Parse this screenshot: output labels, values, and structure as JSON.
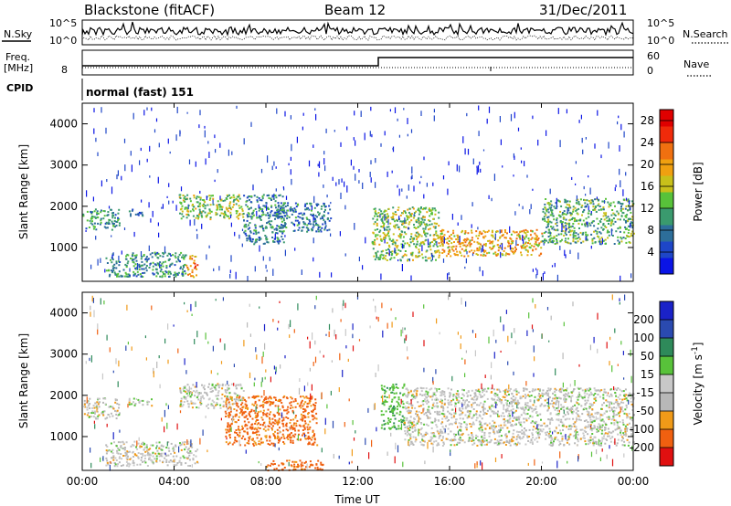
{
  "header": {
    "station": "Blackstone (fitACF)",
    "beam": "Beam 12",
    "date": "31/Dec/2011"
  },
  "noise_panel": {
    "left_label": "N.Sky",
    "left_ticks": [
      "10^5",
      "10^0"
    ],
    "right_ticks": [
      "10^5",
      "10^0"
    ],
    "right_label": "N.Search"
  },
  "freq_panel": {
    "left_label_1": "Freq.",
    "left_label_2": "[MHz]",
    "left_tick": "8",
    "right_ticks": [
      "60",
      "0"
    ],
    "right_label": "Nave"
  },
  "cpid_panel": {
    "label": "CPID",
    "text": "normal (fast) 151"
  },
  "colors": {
    "power_scale": [
      "#0a14e6",
      "#1e46c8",
      "#2d6e9a",
      "#3a9a6e",
      "#58c23a",
      "#c8c01a",
      "#f0a010",
      "#f07010",
      "#f02a0a",
      "#e00000"
    ],
    "velocity_scale": [
      "#e01010",
      "#f06010",
      "#f09a18",
      "#b8b8b8",
      "#c8c8c8",
      "#58c23a",
      "#2e8a5a",
      "#2a4ab0",
      "#1a22c8"
    ]
  },
  "chart_data": [
    {
      "type": "heatmap",
      "title": "",
      "quantity": "Power",
      "xlabel": "",
      "ylabel": "Slant Range [km]",
      "x_ticks": [
        "00:00",
        "04:00",
        "08:00",
        "12:00",
        "16:00",
        "20:00",
        "00:00"
      ],
      "x_range_hours": [
        0,
        24
      ],
      "y_ticks": [
        1000,
        2000,
        3000,
        4000
      ],
      "y_range_km": [
        180,
        4500
      ],
      "colorbar": {
        "label": "Power [dB]",
        "ticks": [
          4,
          8,
          12,
          16,
          20,
          24,
          28
        ],
        "range": [
          0,
          30
        ]
      },
      "scatter_bands": [
        {
          "start_hour": 0.0,
          "end_hour": 1.6,
          "range_km": [
            1450,
            1950
          ],
          "power_db": 10
        },
        {
          "start_hour": 2.0,
          "end_hour": 2.6,
          "range_km": [
            1750,
            1950
          ],
          "power_db": 7
        },
        {
          "start_hour": 4.2,
          "end_hour": 7.0,
          "range_km": [
            1700,
            2300
          ],
          "power_db": 14
        },
        {
          "start_hour": 7.0,
          "end_hour": 8.8,
          "range_km": [
            1100,
            2300
          ],
          "power_db": 9
        },
        {
          "start_hour": 8.5,
          "end_hour": 10.8,
          "range_km": [
            1400,
            2100
          ],
          "power_db": 8
        },
        {
          "start_hour": 1.0,
          "end_hour": 4.5,
          "range_km": [
            300,
            900
          ],
          "power_db": 10
        },
        {
          "start_hour": 4.5,
          "end_hour": 5.0,
          "range_km": [
            300,
            850
          ],
          "power_db": 20
        },
        {
          "start_hour": 12.6,
          "end_hour": 15.5,
          "range_km": [
            700,
            2000
          ],
          "power_db": 14
        },
        {
          "start_hour": 15.5,
          "end_hour": 20.0,
          "range_km": [
            800,
            1450
          ],
          "power_db": 19
        },
        {
          "start_hour": 20.0,
          "end_hour": 24.0,
          "range_km": [
            1100,
            2200
          ],
          "power_db": 12
        }
      ]
    },
    {
      "type": "heatmap",
      "title": "",
      "quantity": "Velocity",
      "xlabel": "Time UT",
      "ylabel": "Slant Range [km]",
      "x_ticks": [
        "00:00",
        "04:00",
        "08:00",
        "12:00",
        "16:00",
        "20:00",
        "00:00"
      ],
      "x_range_hours": [
        0,
        24
      ],
      "y_ticks": [
        1000,
        2000,
        3000,
        4000
      ],
      "y_range_km": [
        180,
        4500
      ],
      "colorbar": {
        "label": "Velocity [m s^-1]",
        "ticks": [
          -200,
          -100,
          -50,
          -15,
          15,
          50,
          100,
          200
        ]
      },
      "scatter_bands": [
        {
          "start_hour": 0.0,
          "end_hour": 1.6,
          "range_km": [
            1450,
            1950
          ],
          "velocity_ms": 0
        },
        {
          "start_hour": 2.0,
          "end_hour": 3.0,
          "range_km": [
            1750,
            1950
          ],
          "velocity_ms": 0
        },
        {
          "start_hour": 4.2,
          "end_hour": 7.0,
          "range_km": [
            1700,
            2300
          ],
          "velocity_ms": 0
        },
        {
          "start_hour": 1.0,
          "end_hour": 5.0,
          "range_km": [
            300,
            900
          ],
          "velocity_ms": 0
        },
        {
          "start_hour": 6.2,
          "end_hour": 10.2,
          "range_km": [
            800,
            2000
          ],
          "velocity_ms": -60
        },
        {
          "start_hour": 8.0,
          "end_hour": 10.5,
          "range_km": [
            200,
            450
          ],
          "velocity_ms": -60
        },
        {
          "start_hour": 13.0,
          "end_hour": 14.0,
          "range_km": [
            1200,
            2300
          ],
          "velocity_ms": 40
        },
        {
          "start_hour": 14.0,
          "end_hour": 24.0,
          "range_km": [
            800,
            2200
          ],
          "velocity_ms": 0
        }
      ]
    }
  ]
}
